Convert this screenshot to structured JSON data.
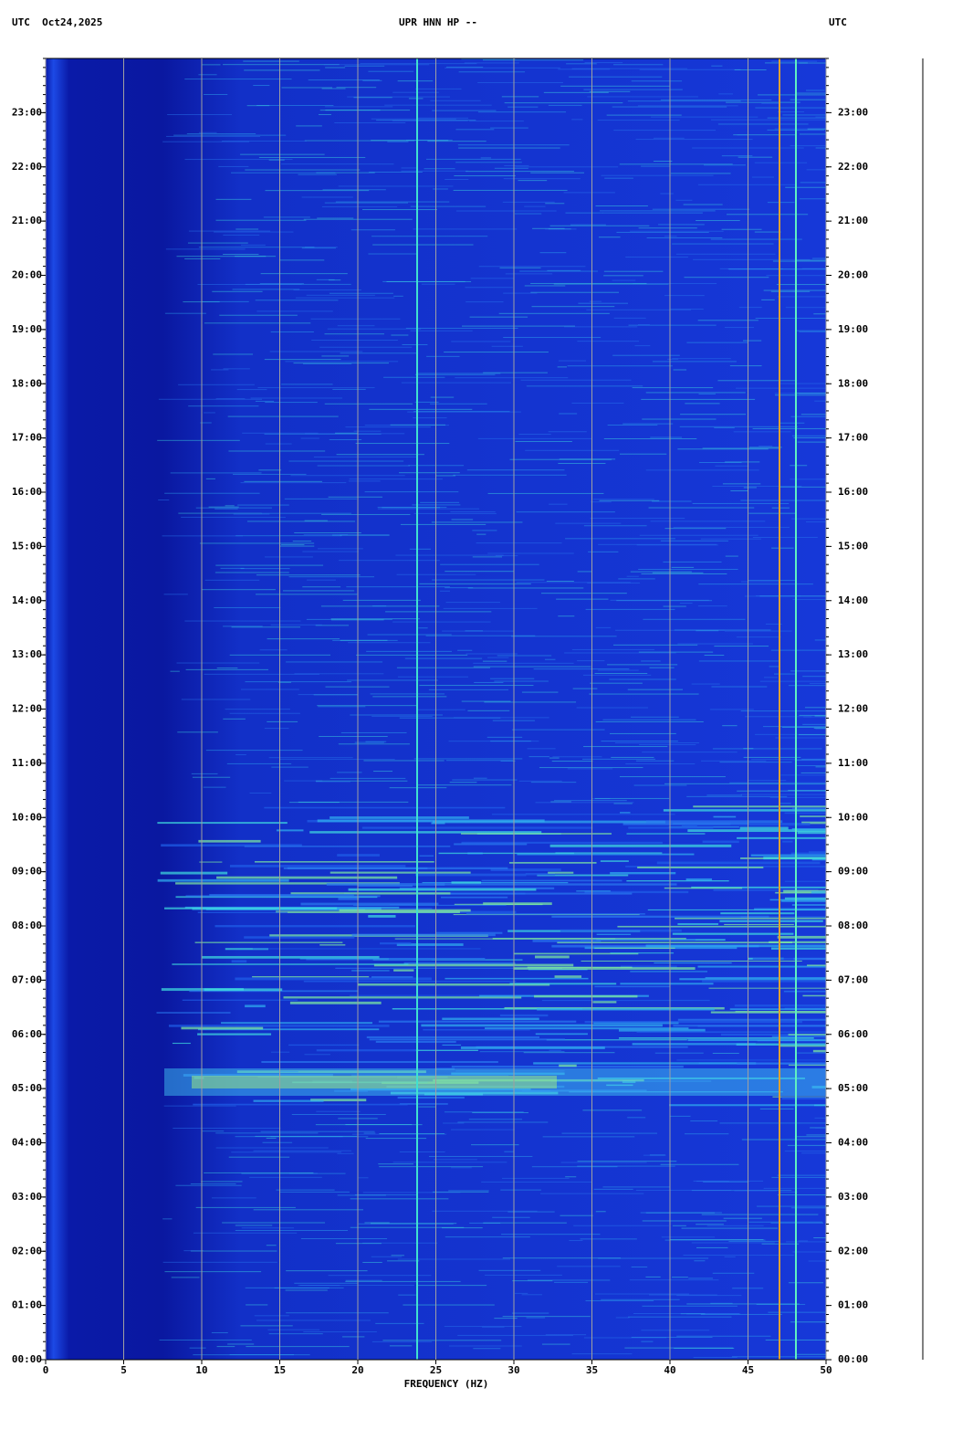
{
  "chart_data": {
    "type": "spectrogram",
    "header_left": "UTC  Oct24,2025",
    "title": "UPR HNN HP --",
    "header_right": "UTC",
    "xlabel": "FREQUENCY (HZ)",
    "xlim": [
      0,
      50
    ],
    "xticks": [
      0,
      5,
      10,
      15,
      20,
      25,
      30,
      35,
      40,
      45,
      50
    ],
    "ylim": [
      0,
      24
    ],
    "yticks": [
      {
        "value": 0,
        "label": "00:00"
      },
      {
        "value": 1,
        "label": "01:00"
      },
      {
        "value": 2,
        "label": "02:00"
      },
      {
        "value": 3,
        "label": "03:00"
      },
      {
        "value": 4,
        "label": "04:00"
      },
      {
        "value": 5,
        "label": "05:00"
      },
      {
        "value": 6,
        "label": "06:00"
      },
      {
        "value": 7,
        "label": "07:00"
      },
      {
        "value": 8,
        "label": "08:00"
      },
      {
        "value": 9,
        "label": "09:00"
      },
      {
        "value": 10,
        "label": "10:00"
      },
      {
        "value": 11,
        "label": "11:00"
      },
      {
        "value": 12,
        "label": "12:00"
      },
      {
        "value": 13,
        "label": "13:00"
      },
      {
        "value": 14,
        "label": "14:00"
      },
      {
        "value": 15,
        "label": "15:00"
      },
      {
        "value": 16,
        "label": "16:00"
      },
      {
        "value": 17,
        "label": "17:00"
      },
      {
        "value": 18,
        "label": "18:00"
      },
      {
        "value": 19,
        "label": "19:00"
      },
      {
        "value": 20,
        "label": "20:00"
      },
      {
        "value": 21,
        "label": "21:00"
      },
      {
        "value": 22,
        "label": "22:00"
      },
      {
        "value": 23,
        "label": "23:00"
      }
    ],
    "grid": true
  }
}
